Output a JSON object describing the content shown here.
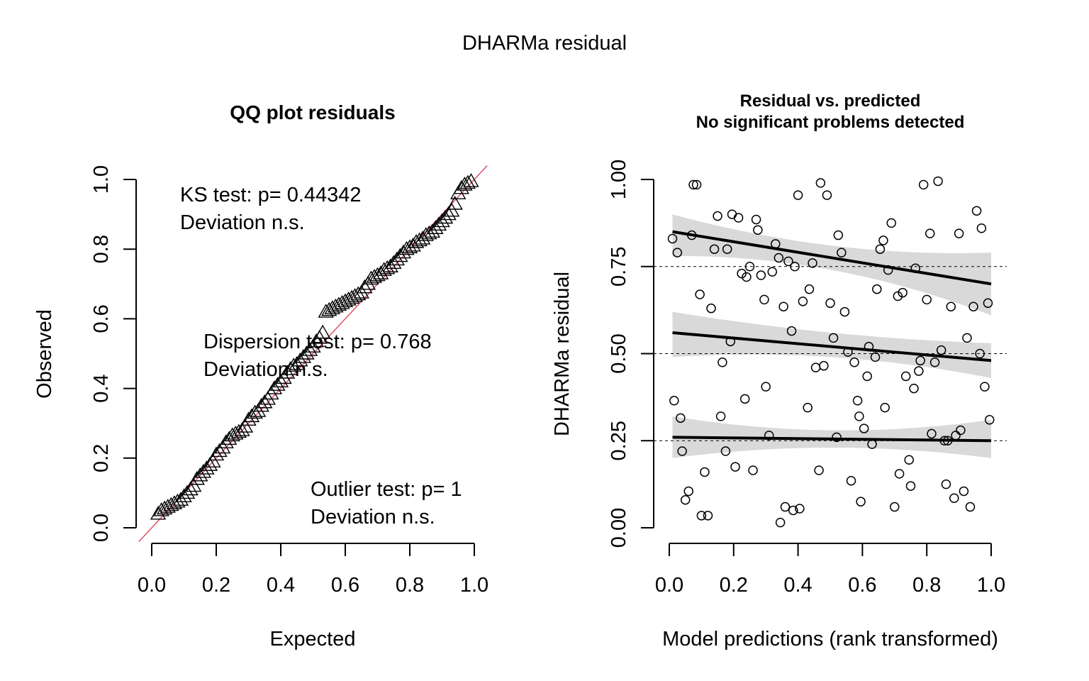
{
  "figure": {
    "title": "DHARMa residual"
  },
  "chart_data": [
    {
      "type": "scatter",
      "panel": "qq",
      "title": "QQ plot residuals",
      "xlabel": "Expected",
      "ylabel": "Observed",
      "xlim": [
        0,
        1
      ],
      "ylim": [
        0,
        1
      ],
      "xticks": [
        "0.0",
        "0.2",
        "0.4",
        "0.6",
        "0.8",
        "1.0"
      ],
      "yticks": [
        "0.0",
        "0.2",
        "0.4",
        "0.6",
        "0.8",
        "1.0"
      ],
      "grid": false,
      "reference_line": {
        "slope": 1,
        "intercept": 0,
        "color": "#DF536B"
      },
      "annotations": [
        {
          "name": "ks",
          "line1": "KS test: p= 0.44342",
          "line2": "Deviation  n.s."
        },
        {
          "name": "dispersion",
          "line1": "Dispersion test: p= 0.768",
          "line2": "Deviation  n.s."
        },
        {
          "name": "outlier",
          "line1": "Outlier test: p= 1",
          "line2": "Deviation  n.s."
        }
      ],
      "points": [
        [
          0.02,
          0.04
        ],
        [
          0.03,
          0.05
        ],
        [
          0.04,
          0.055
        ],
        [
          0.05,
          0.06
        ],
        [
          0.06,
          0.065
        ],
        [
          0.07,
          0.07
        ],
        [
          0.08,
          0.075
        ],
        [
          0.09,
          0.08
        ],
        [
          0.1,
          0.09
        ],
        [
          0.11,
          0.1
        ],
        [
          0.12,
          0.11
        ],
        [
          0.13,
          0.12
        ],
        [
          0.14,
          0.14
        ],
        [
          0.15,
          0.15
        ],
        [
          0.16,
          0.16
        ],
        [
          0.17,
          0.17
        ],
        [
          0.18,
          0.18
        ],
        [
          0.19,
          0.19
        ],
        [
          0.2,
          0.21
        ],
        [
          0.21,
          0.22
        ],
        [
          0.22,
          0.23
        ],
        [
          0.23,
          0.245
        ],
        [
          0.24,
          0.255
        ],
        [
          0.25,
          0.265
        ],
        [
          0.26,
          0.27
        ],
        [
          0.27,
          0.275
        ],
        [
          0.28,
          0.28
        ],
        [
          0.29,
          0.29
        ],
        [
          0.3,
          0.31
        ],
        [
          0.31,
          0.32
        ],
        [
          0.32,
          0.33
        ],
        [
          0.33,
          0.335
        ],
        [
          0.34,
          0.35
        ],
        [
          0.35,
          0.36
        ],
        [
          0.36,
          0.37
        ],
        [
          0.37,
          0.385
        ],
        [
          0.38,
          0.4
        ],
        [
          0.39,
          0.41
        ],
        [
          0.4,
          0.42
        ],
        [
          0.41,
          0.43
        ],
        [
          0.42,
          0.445
        ],
        [
          0.43,
          0.455
        ],
        [
          0.44,
          0.465
        ],
        [
          0.45,
          0.47
        ],
        [
          0.46,
          0.48
        ],
        [
          0.47,
          0.49
        ],
        [
          0.48,
          0.5
        ],
        [
          0.49,
          0.51
        ],
        [
          0.5,
          0.52
        ],
        [
          0.51,
          0.535
        ],
        [
          0.52,
          0.545
        ],
        [
          0.53,
          0.56
        ],
        [
          0.54,
          0.62
        ],
        [
          0.55,
          0.625
        ],
        [
          0.56,
          0.63
        ],
        [
          0.57,
          0.635
        ],
        [
          0.58,
          0.64
        ],
        [
          0.59,
          0.645
        ],
        [
          0.6,
          0.65
        ],
        [
          0.61,
          0.655
        ],
        [
          0.62,
          0.66
        ],
        [
          0.63,
          0.665
        ],
        [
          0.64,
          0.67
        ],
        [
          0.65,
          0.675
        ],
        [
          0.66,
          0.69
        ],
        [
          0.67,
          0.7
        ],
        [
          0.68,
          0.715
        ],
        [
          0.69,
          0.72
        ],
        [
          0.7,
          0.725
        ],
        [
          0.71,
          0.73
        ],
        [
          0.72,
          0.74
        ],
        [
          0.73,
          0.745
        ],
        [
          0.74,
          0.75
        ],
        [
          0.75,
          0.76
        ],
        [
          0.76,
          0.77
        ],
        [
          0.77,
          0.78
        ],
        [
          0.78,
          0.79
        ],
        [
          0.79,
          0.8
        ],
        [
          0.8,
          0.805
        ],
        [
          0.81,
          0.81
        ],
        [
          0.82,
          0.82
        ],
        [
          0.83,
          0.825
        ],
        [
          0.84,
          0.83
        ],
        [
          0.85,
          0.84
        ],
        [
          0.86,
          0.845
        ],
        [
          0.87,
          0.85
        ],
        [
          0.88,
          0.86
        ],
        [
          0.89,
          0.87
        ],
        [
          0.9,
          0.88
        ],
        [
          0.91,
          0.89
        ],
        [
          0.92,
          0.9
        ],
        [
          0.93,
          0.91
        ],
        [
          0.94,
          0.93
        ],
        [
          0.95,
          0.96
        ],
        [
          0.96,
          0.975
        ],
        [
          0.97,
          0.985
        ],
        [
          0.98,
          0.99
        ],
        [
          0.99,
          0.995
        ]
      ]
    },
    {
      "type": "scatter",
      "panel": "residual-vs-predicted",
      "title": "Residual vs. predicted",
      "subtitle": "No significant problems detected",
      "xlabel": "Model predictions (rank transformed)",
      "ylabel": "DHARMa residual",
      "xlim": [
        0,
        1
      ],
      "ylim": [
        0,
        1
      ],
      "xticks": [
        "0.0",
        "0.2",
        "0.4",
        "0.6",
        "0.8",
        "1.0"
      ],
      "yticks": [
        "0.00",
        "0.25",
        "0.50",
        "0.75",
        "1.00"
      ],
      "grid": false,
      "reference_lines_y": [
        0.25,
        0.5,
        0.75
      ],
      "quantile_fits": [
        {
          "quantile": 0.25,
          "y_start": 0.26,
          "y_end": 0.25,
          "band_lower_start": 0.2,
          "band_upper_start": 0.32,
          "band_lower_mid": 0.23,
          "band_upper_mid": 0.28,
          "band_lower_end": 0.2,
          "band_upper_end": 0.31
        },
        {
          "quantile": 0.5,
          "y_start": 0.56,
          "y_end": 0.48,
          "band_lower_start": 0.49,
          "band_upper_start": 0.62,
          "band_lower_mid": 0.49,
          "band_upper_mid": 0.56,
          "band_lower_end": 0.43,
          "band_upper_end": 0.53
        },
        {
          "quantile": 0.75,
          "y_start": 0.85,
          "y_end": 0.7,
          "band_lower_start": 0.78,
          "band_upper_start": 0.9,
          "band_lower_mid": 0.74,
          "band_upper_mid": 0.81,
          "band_lower_end": 0.61,
          "band_upper_end": 0.79
        }
      ],
      "points": [
        [
          0.01,
          0.83
        ],
        [
          0.015,
          0.365
        ],
        [
          0.025,
          0.79
        ],
        [
          0.035,
          0.315
        ],
        [
          0.04,
          0.22
        ],
        [
          0.05,
          0.08
        ],
        [
          0.06,
          0.105
        ],
        [
          0.07,
          0.84
        ],
        [
          0.075,
          0.985
        ],
        [
          0.085,
          0.985
        ],
        [
          0.095,
          0.67
        ],
        [
          0.1,
          0.035
        ],
        [
          0.11,
          0.16
        ],
        [
          0.12,
          0.035
        ],
        [
          0.13,
          0.63
        ],
        [
          0.14,
          0.8
        ],
        [
          0.15,
          0.895
        ],
        [
          0.16,
          0.32
        ],
        [
          0.165,
          0.475
        ],
        [
          0.175,
          0.22
        ],
        [
          0.18,
          0.8
        ],
        [
          0.19,
          0.535
        ],
        [
          0.195,
          0.9
        ],
        [
          0.205,
          0.175
        ],
        [
          0.215,
          0.89
        ],
        [
          0.225,
          0.73
        ],
        [
          0.235,
          0.37
        ],
        [
          0.24,
          0.72
        ],
        [
          0.25,
          0.75
        ],
        [
          0.26,
          0.165
        ],
        [
          0.27,
          0.885
        ],
        [
          0.275,
          0.855
        ],
        [
          0.285,
          0.725
        ],
        [
          0.295,
          0.655
        ],
        [
          0.3,
          0.405
        ],
        [
          0.31,
          0.265
        ],
        [
          0.32,
          0.735
        ],
        [
          0.33,
          0.815
        ],
        [
          0.34,
          0.775
        ],
        [
          0.345,
          0.015
        ],
        [
          0.355,
          0.635
        ],
        [
          0.36,
          0.06
        ],
        [
          0.37,
          0.765
        ],
        [
          0.38,
          0.565
        ],
        [
          0.385,
          0.05
        ],
        [
          0.39,
          0.75
        ],
        [
          0.4,
          0.955
        ],
        [
          0.405,
          0.055
        ],
        [
          0.415,
          0.65
        ],
        [
          0.43,
          0.345
        ],
        [
          0.435,
          0.685
        ],
        [
          0.445,
          0.76
        ],
        [
          0.455,
          0.46
        ],
        [
          0.465,
          0.165
        ],
        [
          0.47,
          0.99
        ],
        [
          0.48,
          0.465
        ],
        [
          0.49,
          0.955
        ],
        [
          0.5,
          0.645
        ],
        [
          0.51,
          0.545
        ],
        [
          0.52,
          0.26
        ],
        [
          0.525,
          0.84
        ],
        [
          0.535,
          0.79
        ],
        [
          0.545,
          0.62
        ],
        [
          0.555,
          0.505
        ],
        [
          0.565,
          0.135
        ],
        [
          0.575,
          0.475
        ],
        [
          0.585,
          0.365
        ],
        [
          0.59,
          0.32
        ],
        [
          0.595,
          0.075
        ],
        [
          0.605,
          0.285
        ],
        [
          0.615,
          0.435
        ],
        [
          0.62,
          0.52
        ],
        [
          0.63,
          0.24
        ],
        [
          0.64,
          0.49
        ],
        [
          0.645,
          0.685
        ],
        [
          0.655,
          0.8
        ],
        [
          0.665,
          0.825
        ],
        [
          0.67,
          0.345
        ],
        [
          0.68,
          0.74
        ],
        [
          0.69,
          0.875
        ],
        [
          0.7,
          0.06
        ],
        [
          0.71,
          0.665
        ],
        [
          0.715,
          0.155
        ],
        [
          0.725,
          0.675
        ],
        [
          0.735,
          0.435
        ],
        [
          0.745,
          0.195
        ],
        [
          0.75,
          0.12
        ],
        [
          0.76,
          0.4
        ],
        [
          0.765,
          0.745
        ],
        [
          0.775,
          0.45
        ],
        [
          0.78,
          0.48
        ],
        [
          0.79,
          0.985
        ],
        [
          0.8,
          0.655
        ],
        [
          0.81,
          0.845
        ],
        [
          0.815,
          0.27
        ],
        [
          0.825,
          0.475
        ],
        [
          0.835,
          0.995
        ],
        [
          0.845,
          0.51
        ],
        [
          0.855,
          0.25
        ],
        [
          0.86,
          0.125
        ],
        [
          0.865,
          0.25
        ],
        [
          0.875,
          0.635
        ],
        [
          0.885,
          0.085
        ],
        [
          0.89,
          0.265
        ],
        [
          0.9,
          0.845
        ],
        [
          0.905,
          0.28
        ],
        [
          0.915,
          0.105
        ],
        [
          0.925,
          0.545
        ],
        [
          0.935,
          0.06
        ],
        [
          0.945,
          0.635
        ],
        [
          0.955,
          0.91
        ],
        [
          0.965,
          0.5
        ],
        [
          0.97,
          0.86
        ],
        [
          0.98,
          0.405
        ],
        [
          0.99,
          0.645
        ],
        [
          0.995,
          0.31
        ]
      ]
    }
  ]
}
